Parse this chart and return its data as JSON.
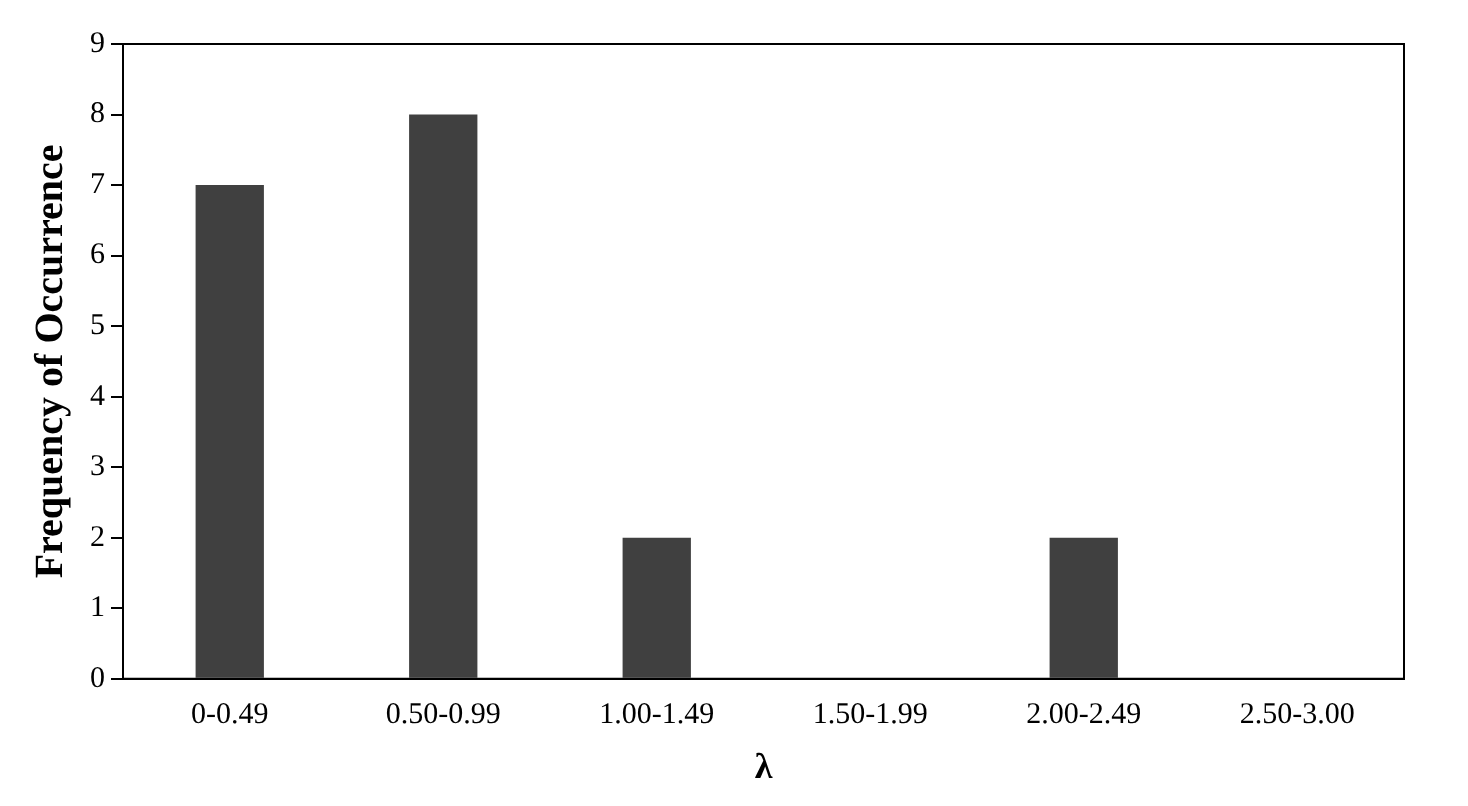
{
  "chart_data": {
    "type": "bar",
    "xlabel": "λ",
    "ylabel": "Frequency of Occurrence",
    "categories": [
      "0-0.49",
      "0.50-0.99",
      "1.00-1.49",
      "1.50-1.99",
      "2.00-2.49",
      "2.50-3.00"
    ],
    "values": [
      7,
      8,
      2,
      0,
      2,
      0
    ],
    "color": "#404040",
    "ylim": [
      0,
      9
    ],
    "yticks": [
      0,
      1,
      2,
      3,
      4,
      5,
      6,
      7,
      8,
      9
    ],
    "grid": false,
    "legend": false
  }
}
